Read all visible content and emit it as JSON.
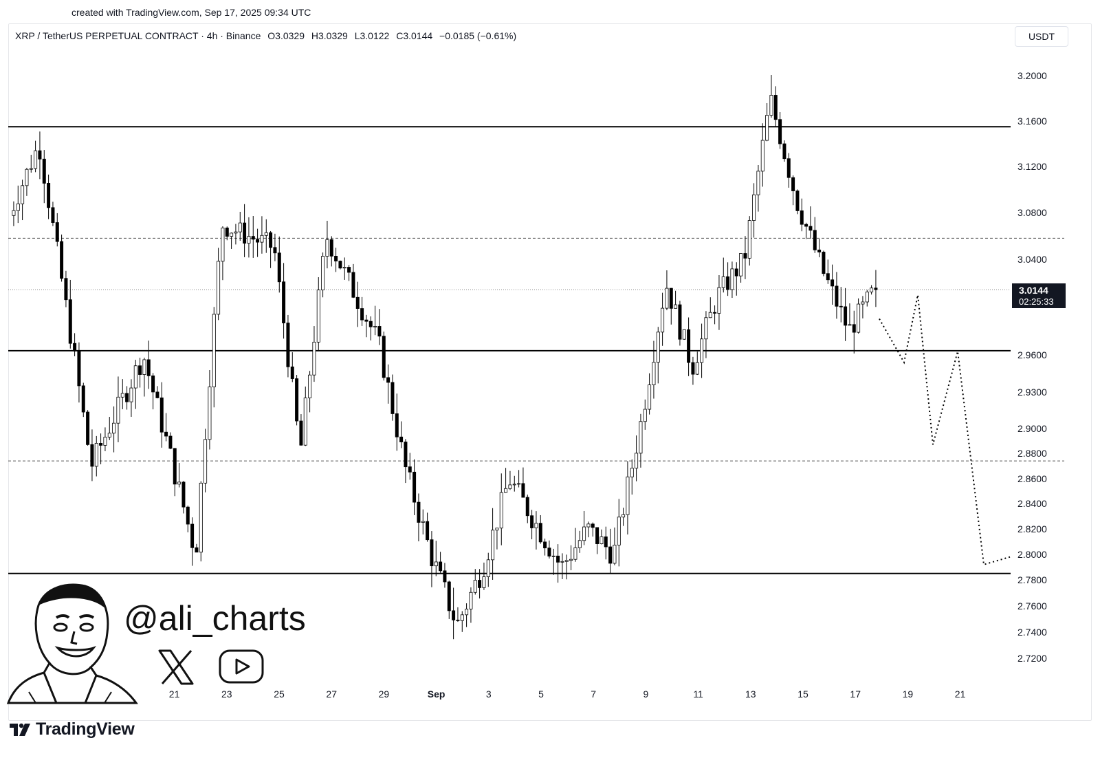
{
  "header": {
    "created": "created with TradingView.com, Sep 17, 2025 09:34 UTC",
    "symbol": "XRP / TetherUS PERPETUAL CONTRACT · 4h · Binance",
    "open": "O3.0329",
    "high": "H3.0329",
    "low": "L3.0122",
    "close": "C3.0144",
    "change": "−0.0185 (−0.61%)",
    "currency": "USDT"
  },
  "price_label": {
    "price": "3.0144",
    "countdown": "02:25:33"
  },
  "watermark": {
    "handle": "@ali_charts",
    "icons": [
      "x-logo-icon",
      "youtube-icon",
      "cartoon-avatar-icon"
    ]
  },
  "footer": {
    "brand": "TradingView"
  },
  "chart_data": {
    "type": "candlestick",
    "interval": "4h",
    "y_axis": {
      "ticks": [
        "3.2000",
        "3.1600",
        "3.1200",
        "3.0800",
        "3.0400",
        "2.9600",
        "2.9300",
        "2.9000",
        "2.8800",
        "2.8600",
        "2.8400",
        "2.8200",
        "2.8000",
        "2.7800",
        "2.7600",
        "2.7400",
        "2.7200"
      ]
    },
    "x_axis": {
      "ticks": [
        "15",
        "17",
        "19",
        "21",
        "23",
        "25",
        "27",
        "29",
        "Sep",
        "3",
        "5",
        "7",
        "9",
        "11",
        "13",
        "15",
        "17",
        "19",
        "21"
      ]
    },
    "horizontal_lines": [
      {
        "price": 3.155,
        "style": "solid"
      },
      {
        "price": 2.9635,
        "style": "solid"
      },
      {
        "price": 2.785,
        "style": "solid"
      },
      {
        "price": 3.058,
        "style": "dashed"
      },
      {
        "price": 2.874,
        "style": "dashed"
      },
      {
        "price": 3.0144,
        "style": "dotted"
      }
    ],
    "projection": {
      "style": "dotted",
      "points": [
        {
          "date": "Sep 17",
          "price": 2.99
        },
        {
          "date": "Sep 18",
          "price": 2.954
        },
        {
          "date": "Sep 18",
          "price": 3.01
        },
        {
          "date": "Sep 19",
          "price": 2.887
        },
        {
          "date": "Sep 20",
          "price": 2.963
        },
        {
          "date": "Sep 21",
          "price": 2.792
        },
        {
          "date": "Sep 22",
          "price": 2.798
        }
      ]
    },
    "key_prices": [
      {
        "date": "Aug 14",
        "price": 3.03
      },
      {
        "date": "Aug 16",
        "price": 3.14
      },
      {
        "date": "Aug 18",
        "price": 2.87
      },
      {
        "date": "Aug 20",
        "price": 2.96
      },
      {
        "date": "Aug 22",
        "price": 2.8
      },
      {
        "date": "Aug 23",
        "price": 3.07
      },
      {
        "date": "Aug 25",
        "price": 3.05
      },
      {
        "date": "Aug 26",
        "price": 2.88
      },
      {
        "date": "Aug 27",
        "price": 3.06
      },
      {
        "date": "Aug 29",
        "price": 2.97
      },
      {
        "date": "Aug 30",
        "price": 2.87
      },
      {
        "date": "Aug 31",
        "price": 2.8
      },
      {
        "date": "Sep 1",
        "price": 2.745
      },
      {
        "date": "Sep 2",
        "price": 2.79
      },
      {
        "date": "Sep 3",
        "price": 2.86
      },
      {
        "date": "Sep 5",
        "price": 2.79
      },
      {
        "date": "Sep 6",
        "price": 2.82
      },
      {
        "date": "Sep 7",
        "price": 2.8
      },
      {
        "date": "Sep 8",
        "price": 2.9
      },
      {
        "date": "Sep 9",
        "price": 3.02
      },
      {
        "date": "Sep 10",
        "price": 2.95
      },
      {
        "date": "Sep 11",
        "price": 3.01
      },
      {
        "date": "Sep 12",
        "price": 3.04
      },
      {
        "date": "Sep 13",
        "price": 3.18
      },
      {
        "date": "Sep 14",
        "price": 3.09
      },
      {
        "date": "Sep 15",
        "price": 3.03
      },
      {
        "date": "Sep 16",
        "price": 2.98
      },
      {
        "date": "Sep 17",
        "price": 3.0144
      }
    ]
  }
}
